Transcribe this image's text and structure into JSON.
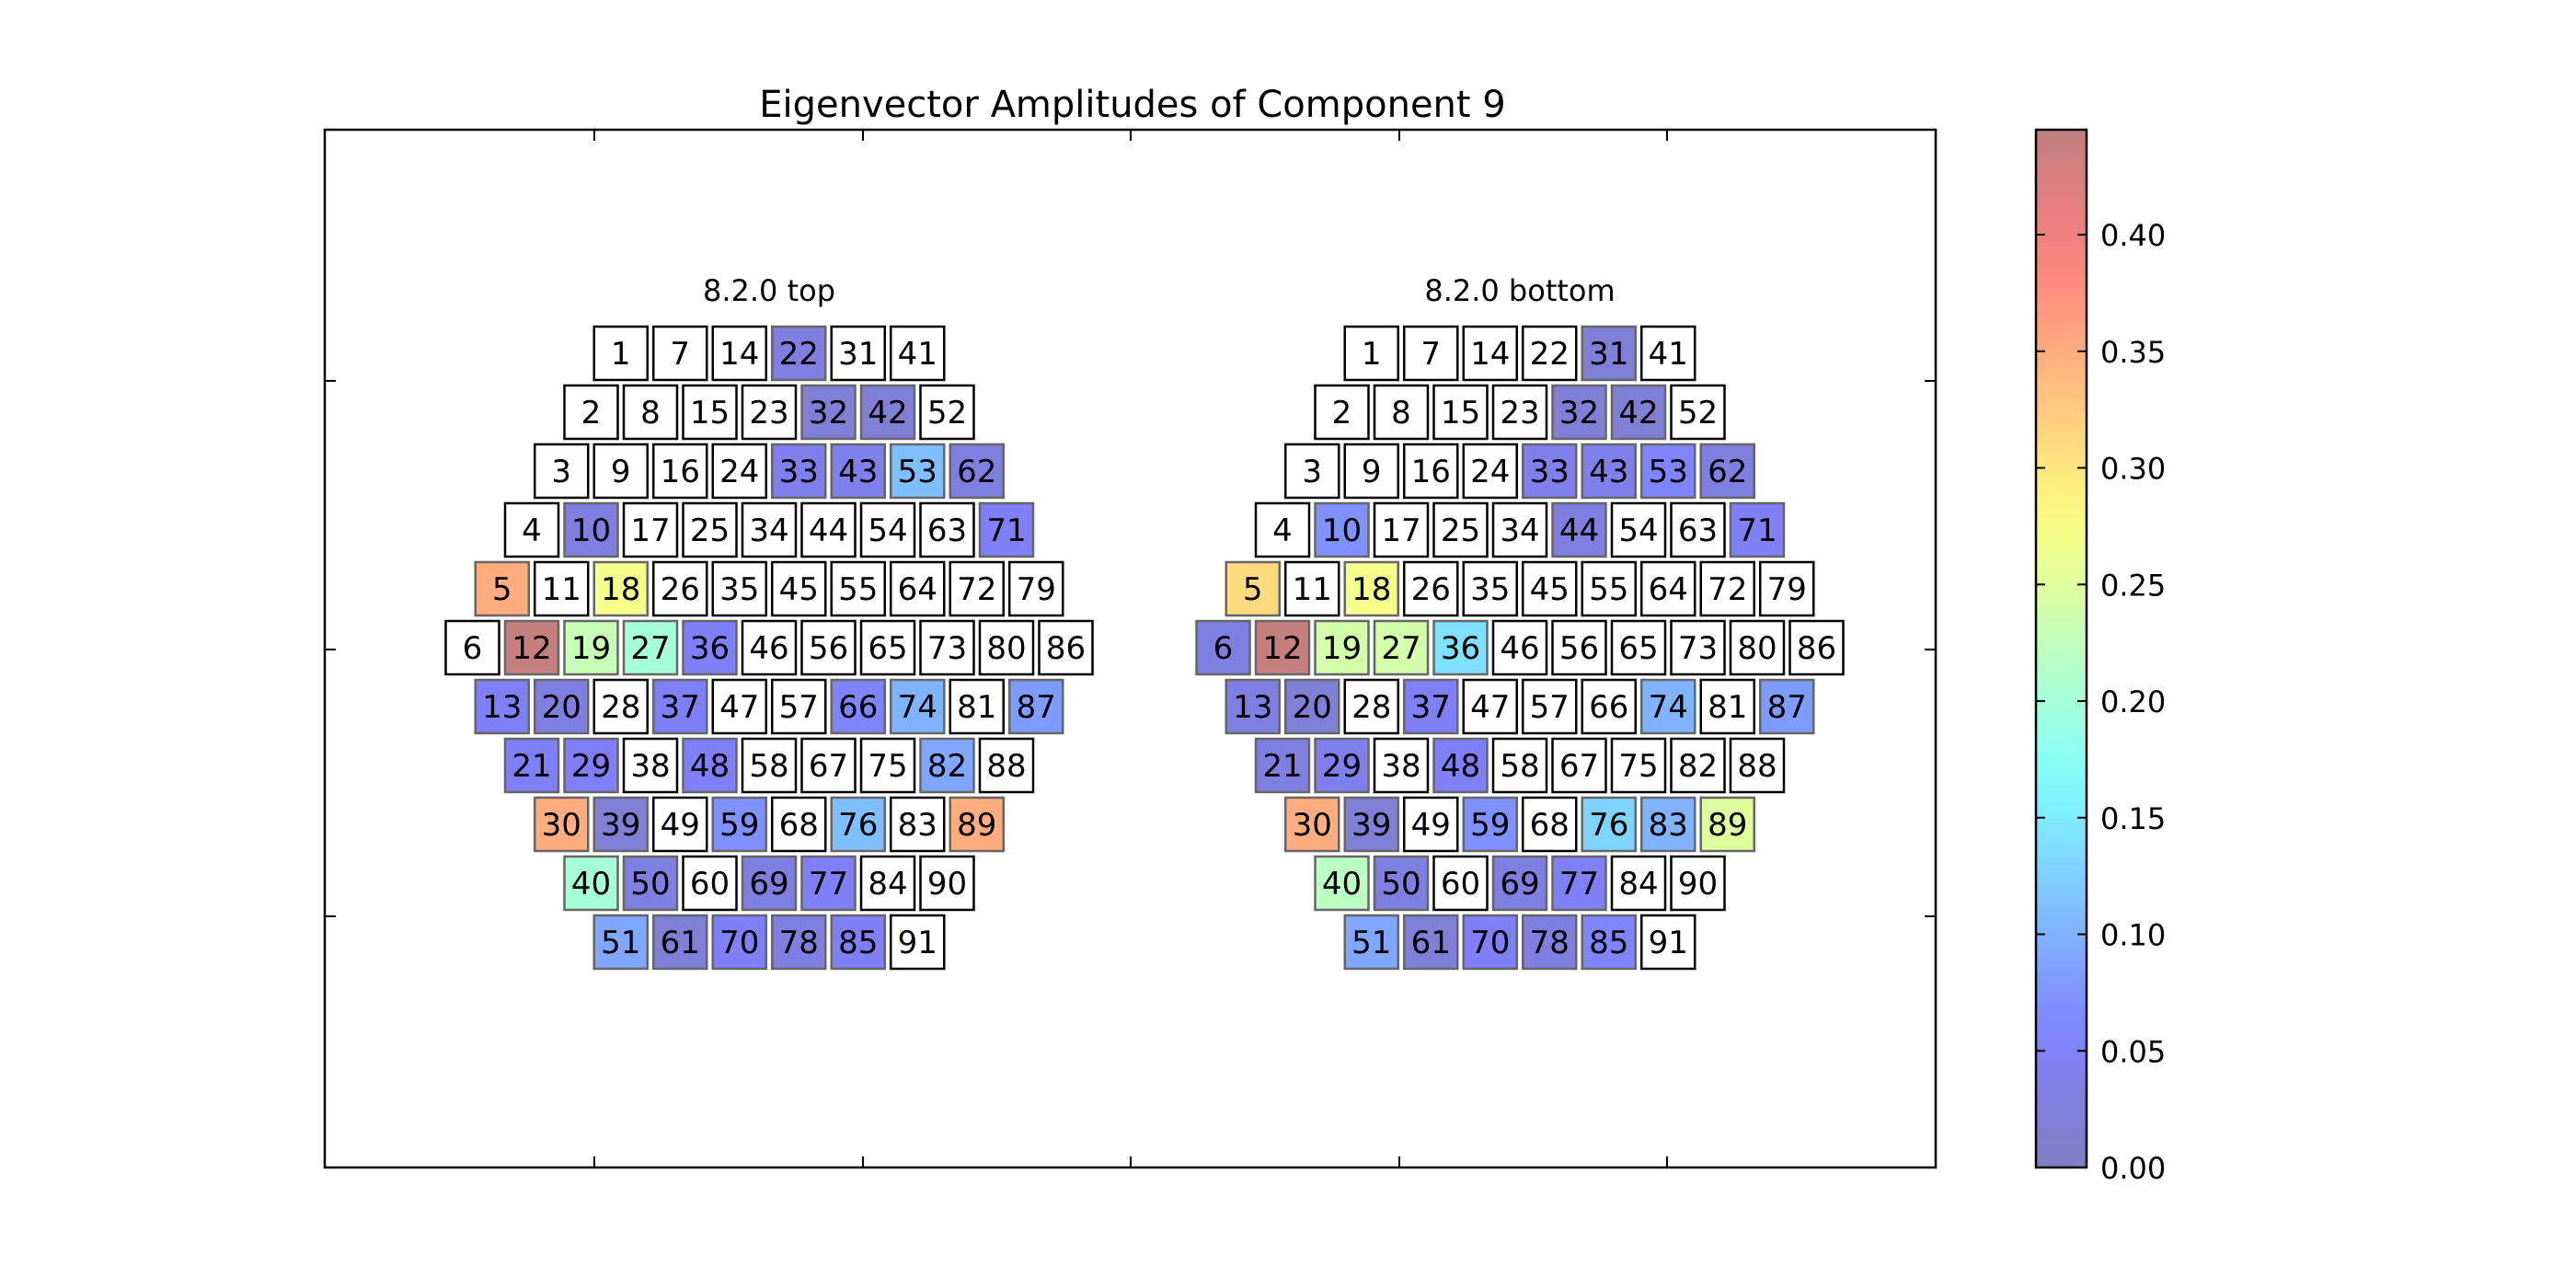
{
  "chart_data": {
    "type": "heatmap",
    "title": "Eigenvector Amplitudes of Component 9",
    "colorbar": {
      "min": 0.0,
      "max": 0.445,
      "ticks": [
        0.0,
        0.05,
        0.1,
        0.15,
        0.2,
        0.25,
        0.3,
        0.35,
        0.4
      ],
      "tick_labels": [
        "0.00",
        "0.05",
        "0.10",
        "0.15",
        "0.20",
        "0.25",
        "0.30",
        "0.35",
        "0.40"
      ],
      "colormap": "jet",
      "alpha": 0.5
    },
    "grid": false,
    "panels": [
      {
        "label": "8.2.0 top",
        "rows": [
          [
            {
              "id": 1,
              "v": null
            },
            {
              "id": 7,
              "v": null
            },
            {
              "id": 14,
              "v": null
            },
            {
              "id": 22,
              "v": 0.03
            },
            {
              "id": 31,
              "v": null
            },
            {
              "id": 41,
              "v": null
            }
          ],
          [
            {
              "id": 2,
              "v": null
            },
            {
              "id": 8,
              "v": null
            },
            {
              "id": 15,
              "v": null
            },
            {
              "id": 23,
              "v": null
            },
            {
              "id": 32,
              "v": 0.02
            },
            {
              "id": 42,
              "v": 0.02
            },
            {
              "id": 52,
              "v": null
            }
          ],
          [
            {
              "id": 3,
              "v": null
            },
            {
              "id": 9,
              "v": null
            },
            {
              "id": 16,
              "v": null
            },
            {
              "id": 24,
              "v": null
            },
            {
              "id": 33,
              "v": 0.04
            },
            {
              "id": 43,
              "v": 0.04
            },
            {
              "id": 53,
              "v": 0.11
            },
            {
              "id": 62,
              "v": 0.03
            }
          ],
          [
            {
              "id": 4,
              "v": null
            },
            {
              "id": 10,
              "v": 0.03
            },
            {
              "id": 17,
              "v": null
            },
            {
              "id": 25,
              "v": null
            },
            {
              "id": 34,
              "v": null
            },
            {
              "id": 44,
              "v": null
            },
            {
              "id": 54,
              "v": null
            },
            {
              "id": 63,
              "v": null
            },
            {
              "id": 71,
              "v": 0.05
            }
          ],
          [
            {
              "id": 5,
              "v": 0.35
            },
            {
              "id": 11,
              "v": null
            },
            {
              "id": 18,
              "v": 0.27
            },
            {
              "id": 26,
              "v": null
            },
            {
              "id": 35,
              "v": null
            },
            {
              "id": 45,
              "v": null
            },
            {
              "id": 55,
              "v": null
            },
            {
              "id": 64,
              "v": null
            },
            {
              "id": 72,
              "v": null
            },
            {
              "id": 79,
              "v": null
            }
          ],
          [
            {
              "id": 6,
              "v": null
            },
            {
              "id": 12,
              "v": 0.44
            },
            {
              "id": 19,
              "v": 0.23
            },
            {
              "id": 27,
              "v": 0.2
            },
            {
              "id": 36,
              "v": 0.05
            },
            {
              "id": 46,
              "v": null
            },
            {
              "id": 56,
              "v": null
            },
            {
              "id": 65,
              "v": null
            },
            {
              "id": 73,
              "v": null
            },
            {
              "id": 80,
              "v": null
            },
            {
              "id": 86,
              "v": null
            }
          ],
          [
            {
              "id": 13,
              "v": 0.05
            },
            {
              "id": 20,
              "v": 0.03
            },
            {
              "id": 28,
              "v": null
            },
            {
              "id": 37,
              "v": 0.05
            },
            {
              "id": 47,
              "v": null
            },
            {
              "id": 57,
              "v": null
            },
            {
              "id": 66,
              "v": 0.06
            },
            {
              "id": 74,
              "v": 0.1
            },
            {
              "id": 81,
              "v": null
            },
            {
              "id": 87,
              "v": 0.08
            }
          ],
          [
            {
              "id": 21,
              "v": 0.05
            },
            {
              "id": 29,
              "v": 0.05
            },
            {
              "id": 38,
              "v": null
            },
            {
              "id": 48,
              "v": 0.05
            },
            {
              "id": 58,
              "v": null
            },
            {
              "id": 67,
              "v": null
            },
            {
              "id": 75,
              "v": null
            },
            {
              "id": 82,
              "v": 0.09
            },
            {
              "id": 88,
              "v": null
            }
          ],
          [
            {
              "id": 30,
              "v": 0.35
            },
            {
              "id": 39,
              "v": 0.02
            },
            {
              "id": 49,
              "v": null
            },
            {
              "id": 59,
              "v": 0.07
            },
            {
              "id": 68,
              "v": null
            },
            {
              "id": 76,
              "v": 0.11
            },
            {
              "id": 83,
              "v": null
            },
            {
              "id": 89,
              "v": 0.35
            }
          ],
          [
            {
              "id": 40,
              "v": 0.2
            },
            {
              "id": 50,
              "v": 0.03
            },
            {
              "id": 60,
              "v": null
            },
            {
              "id": 69,
              "v": 0.03
            },
            {
              "id": 77,
              "v": 0.05
            },
            {
              "id": 84,
              "v": null
            },
            {
              "id": 90,
              "v": null
            }
          ],
          [
            {
              "id": 51,
              "v": 0.09
            },
            {
              "id": 61,
              "v": 0.02
            },
            {
              "id": 70,
              "v": 0.05
            },
            {
              "id": 78,
              "v": 0.03
            },
            {
              "id": 85,
              "v": 0.05
            },
            {
              "id": 91,
              "v": null
            }
          ]
        ]
      },
      {
        "label": "8.2.0 bottom",
        "rows": [
          [
            {
              "id": 1,
              "v": null
            },
            {
              "id": 7,
              "v": null
            },
            {
              "id": 14,
              "v": null
            },
            {
              "id": 22,
              "v": null
            },
            {
              "id": 31,
              "v": 0.02
            },
            {
              "id": 41,
              "v": null
            }
          ],
          [
            {
              "id": 2,
              "v": null
            },
            {
              "id": 8,
              "v": null
            },
            {
              "id": 15,
              "v": null
            },
            {
              "id": 23,
              "v": null
            },
            {
              "id": 32,
              "v": 0.02
            },
            {
              "id": 42,
              "v": 0.02
            },
            {
              "id": 52,
              "v": null
            }
          ],
          [
            {
              "id": 3,
              "v": null
            },
            {
              "id": 9,
              "v": null
            },
            {
              "id": 16,
              "v": null
            },
            {
              "id": 24,
              "v": null
            },
            {
              "id": 33,
              "v": 0.04
            },
            {
              "id": 43,
              "v": 0.04
            },
            {
              "id": 53,
              "v": 0.06
            },
            {
              "id": 62,
              "v": 0.03
            }
          ],
          [
            {
              "id": 4,
              "v": null
            },
            {
              "id": 10,
              "v": 0.07
            },
            {
              "id": 17,
              "v": null
            },
            {
              "id": 25,
              "v": null
            },
            {
              "id": 34,
              "v": null
            },
            {
              "id": 44,
              "v": 0.03
            },
            {
              "id": 54,
              "v": null
            },
            {
              "id": 63,
              "v": null
            },
            {
              "id": 71,
              "v": 0.05
            }
          ],
          [
            {
              "id": 5,
              "v": 0.31
            },
            {
              "id": 11,
              "v": null
            },
            {
              "id": 18,
              "v": 0.27
            },
            {
              "id": 26,
              "v": null
            },
            {
              "id": 35,
              "v": null
            },
            {
              "id": 45,
              "v": null
            },
            {
              "id": 55,
              "v": null
            },
            {
              "id": 64,
              "v": null
            },
            {
              "id": 72,
              "v": null
            },
            {
              "id": 79,
              "v": null
            }
          ],
          [
            {
              "id": 6,
              "v": 0.03
            },
            {
              "id": 12,
              "v": 0.44
            },
            {
              "id": 19,
              "v": 0.24
            },
            {
              "id": 27,
              "v": 0.24
            },
            {
              "id": 36,
              "v": 0.14
            },
            {
              "id": 46,
              "v": null
            },
            {
              "id": 56,
              "v": null
            },
            {
              "id": 65,
              "v": null
            },
            {
              "id": 73,
              "v": null
            },
            {
              "id": 80,
              "v": null
            },
            {
              "id": 86,
              "v": null
            }
          ],
          [
            {
              "id": 13,
              "v": 0.03
            },
            {
              "id": 20,
              "v": 0.02
            },
            {
              "id": 28,
              "v": null
            },
            {
              "id": 37,
              "v": 0.05
            },
            {
              "id": 47,
              "v": null
            },
            {
              "id": 57,
              "v": null
            },
            {
              "id": 66,
              "v": null
            },
            {
              "id": 74,
              "v": 0.1
            },
            {
              "id": 81,
              "v": null
            },
            {
              "id": 87,
              "v": 0.08
            }
          ],
          [
            {
              "id": 21,
              "v": 0.03
            },
            {
              "id": 29,
              "v": 0.04
            },
            {
              "id": 38,
              "v": null
            },
            {
              "id": 48,
              "v": 0.05
            },
            {
              "id": 58,
              "v": null
            },
            {
              "id": 67,
              "v": null
            },
            {
              "id": 75,
              "v": null
            },
            {
              "id": 82,
              "v": null
            },
            {
              "id": 88,
              "v": null
            }
          ],
          [
            {
              "id": 30,
              "v": 0.35
            },
            {
              "id": 39,
              "v": 0.02
            },
            {
              "id": 49,
              "v": null
            },
            {
              "id": 59,
              "v": 0.07
            },
            {
              "id": 68,
              "v": null
            },
            {
              "id": 76,
              "v": 0.13
            },
            {
              "id": 83,
              "v": 0.1
            },
            {
              "id": 89,
              "v": 0.25
            }
          ],
          [
            {
              "id": 40,
              "v": 0.22
            },
            {
              "id": 50,
              "v": 0.03
            },
            {
              "id": 60,
              "v": null
            },
            {
              "id": 69,
              "v": 0.03
            },
            {
              "id": 77,
              "v": 0.05
            },
            {
              "id": 84,
              "v": null
            },
            {
              "id": 90,
              "v": null
            }
          ],
          [
            {
              "id": 51,
              "v": 0.09
            },
            {
              "id": 61,
              "v": 0.02
            },
            {
              "id": 70,
              "v": 0.05
            },
            {
              "id": 78,
              "v": 0.03
            },
            {
              "id": 85,
              "v": 0.06
            },
            {
              "id": 91,
              "v": null
            }
          ]
        ]
      }
    ]
  }
}
